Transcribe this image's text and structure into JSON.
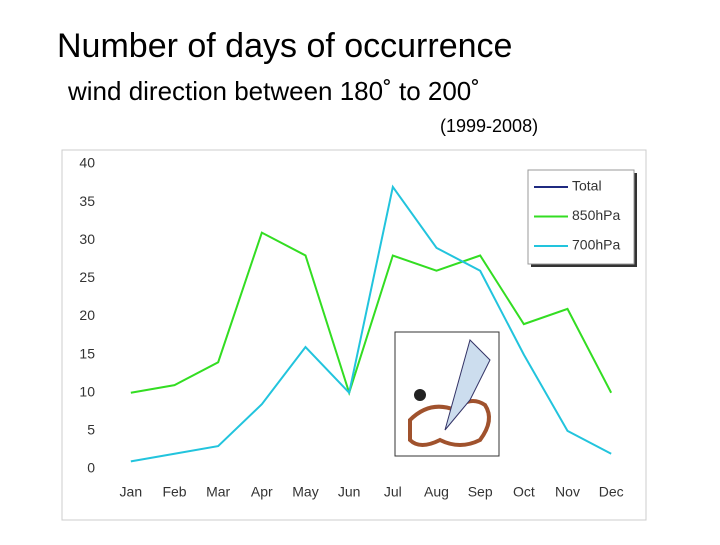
{
  "chart_data": {
    "type": "line",
    "title": "Number of days of occurrence",
    "subtitle": "wind direction between 180˚ to 200˚",
    "period": "(1999-2008)",
    "categories": [
      "Jan",
      "Feb",
      "Mar",
      "Apr",
      "May",
      "Jun",
      "Jul",
      "Aug",
      "Sep",
      "Oct",
      "Nov",
      "Dec"
    ],
    "series": [
      {
        "name": "Total",
        "color": "#1f2a80",
        "values": [
          null,
          null,
          null,
          null,
          null,
          null,
          null,
          null,
          null,
          null,
          null,
          null
        ]
      },
      {
        "name": "850hPa",
        "color": "#33dd22",
        "values": [
          10,
          11,
          14,
          31,
          28,
          10,
          28,
          26,
          28,
          19,
          21,
          10
        ]
      },
      {
        "name": "700hPa",
        "color": "#22c4dd",
        "values": [
          1,
          2,
          3,
          8.5,
          16,
          10,
          37,
          29,
          26,
          15,
          5,
          2
        ]
      }
    ],
    "ylim": [
      0,
      40
    ],
    "yticks": [
      0,
      5,
      10,
      15,
      20,
      25,
      30,
      35,
      40
    ],
    "grid": false,
    "legend": "upper right"
  }
}
